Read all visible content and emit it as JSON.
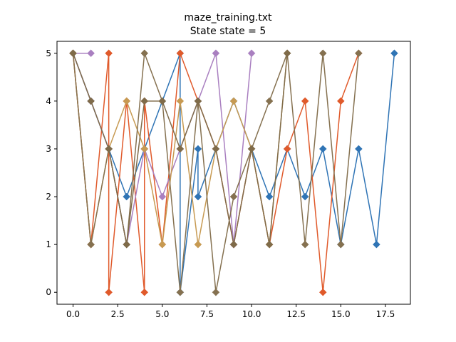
{
  "chart_data": {
    "type": "line",
    "title": "maze_training.txt",
    "subtitle": "State state = 5",
    "xlabel": "",
    "ylabel": "",
    "xlim": [
      -0.9,
      18.9
    ],
    "ylim": [
      -0.25,
      5.25
    ],
    "x_ticks": [
      0,
      2.5,
      5,
      7.5,
      10,
      12.5,
      15,
      17.5
    ],
    "x_tick_labels": [
      "0.0",
      "2.5",
      "5.0",
      "7.5",
      "10.0",
      "12.5",
      "15.0",
      "17.5"
    ],
    "y_ticks": [
      0,
      1,
      2,
      3,
      4,
      5
    ],
    "y_tick_labels": [
      "0",
      "1",
      "2",
      "3",
      "4",
      "5"
    ],
    "grid": false,
    "marker": "diamond",
    "series": [
      {
        "color": "#2f74b5",
        "points": [
          [
            0,
            5
          ],
          [
            1,
            4
          ],
          [
            2,
            3
          ],
          [
            3,
            2
          ],
          [
            4,
            3
          ],
          [
            5,
            4
          ],
          [
            6,
            5
          ],
          [
            6,
            0
          ],
          [
            7,
            3
          ],
          [
            7,
            2
          ],
          [
            8,
            3
          ],
          [
            9,
            4
          ],
          [
            10,
            3
          ],
          [
            11,
            2
          ],
          [
            12,
            3
          ],
          [
            13,
            2
          ],
          [
            14,
            3
          ],
          [
            15,
            1
          ],
          [
            16,
            3
          ],
          [
            17,
            1
          ],
          [
            18,
            5
          ]
        ]
      },
      {
        "color": "#e05a2b",
        "points": [
          [
            0,
            5
          ],
          [
            1,
            1
          ],
          [
            2,
            5
          ],
          [
            2,
            0
          ],
          [
            3,
            4
          ],
          [
            4,
            0
          ],
          [
            4,
            4
          ],
          [
            5,
            1
          ],
          [
            6,
            5
          ],
          [
            8,
            3
          ],
          [
            9,
            1
          ],
          [
            10,
            3
          ],
          [
            11,
            1
          ],
          [
            12,
            3
          ],
          [
            13,
            4
          ],
          [
            14,
            0
          ],
          [
            15,
            4
          ],
          [
            16,
            5
          ]
        ]
      },
      {
        "color": "#a97fc0",
        "points": [
          [
            0,
            5
          ],
          [
            1,
            5
          ],
          [
            0,
            5
          ],
          [
            1,
            4
          ],
          [
            2,
            3
          ],
          [
            3,
            1
          ],
          [
            4,
            3
          ],
          [
            5,
            2
          ],
          [
            6,
            3
          ],
          [
            7,
            4
          ],
          [
            8,
            5
          ],
          [
            9,
            1
          ],
          [
            10,
            5
          ]
        ]
      },
      {
        "color": "#c79a52",
        "points": [
          [
            0,
            5
          ],
          [
            1,
            1
          ],
          [
            2,
            3
          ],
          [
            3,
            4
          ],
          [
            4,
            3
          ],
          [
            5,
            1
          ],
          [
            6,
            4
          ],
          [
            7,
            1
          ],
          [
            8,
            3
          ],
          [
            9,
            4
          ],
          [
            10,
            3
          ],
          [
            11,
            1
          ],
          [
            12,
            5
          ]
        ]
      },
      {
        "color": "#857150",
        "points": [
          [
            0,
            5
          ],
          [
            1,
            1
          ],
          [
            2,
            3
          ],
          [
            3,
            1
          ],
          [
            4,
            5
          ],
          [
            5,
            4
          ],
          [
            6,
            0
          ],
          [
            7,
            4
          ],
          [
            8,
            0
          ],
          [
            9,
            2
          ],
          [
            10,
            3
          ],
          [
            11,
            4
          ],
          [
            12,
            5
          ],
          [
            13,
            1
          ],
          [
            14,
            5
          ],
          [
            15,
            1
          ],
          [
            16,
            5
          ]
        ]
      },
      {
        "color": "#7f6b49",
        "points": [
          [
            0,
            5
          ],
          [
            1,
            4
          ],
          [
            2,
            3
          ],
          [
            3,
            1
          ],
          [
            4,
            4
          ],
          [
            5,
            4
          ],
          [
            6,
            3
          ],
          [
            7,
            4
          ],
          [
            8,
            3
          ],
          [
            9,
            1
          ],
          [
            10,
            3
          ],
          [
            11,
            1
          ],
          [
            12,
            5
          ]
        ]
      }
    ]
  }
}
